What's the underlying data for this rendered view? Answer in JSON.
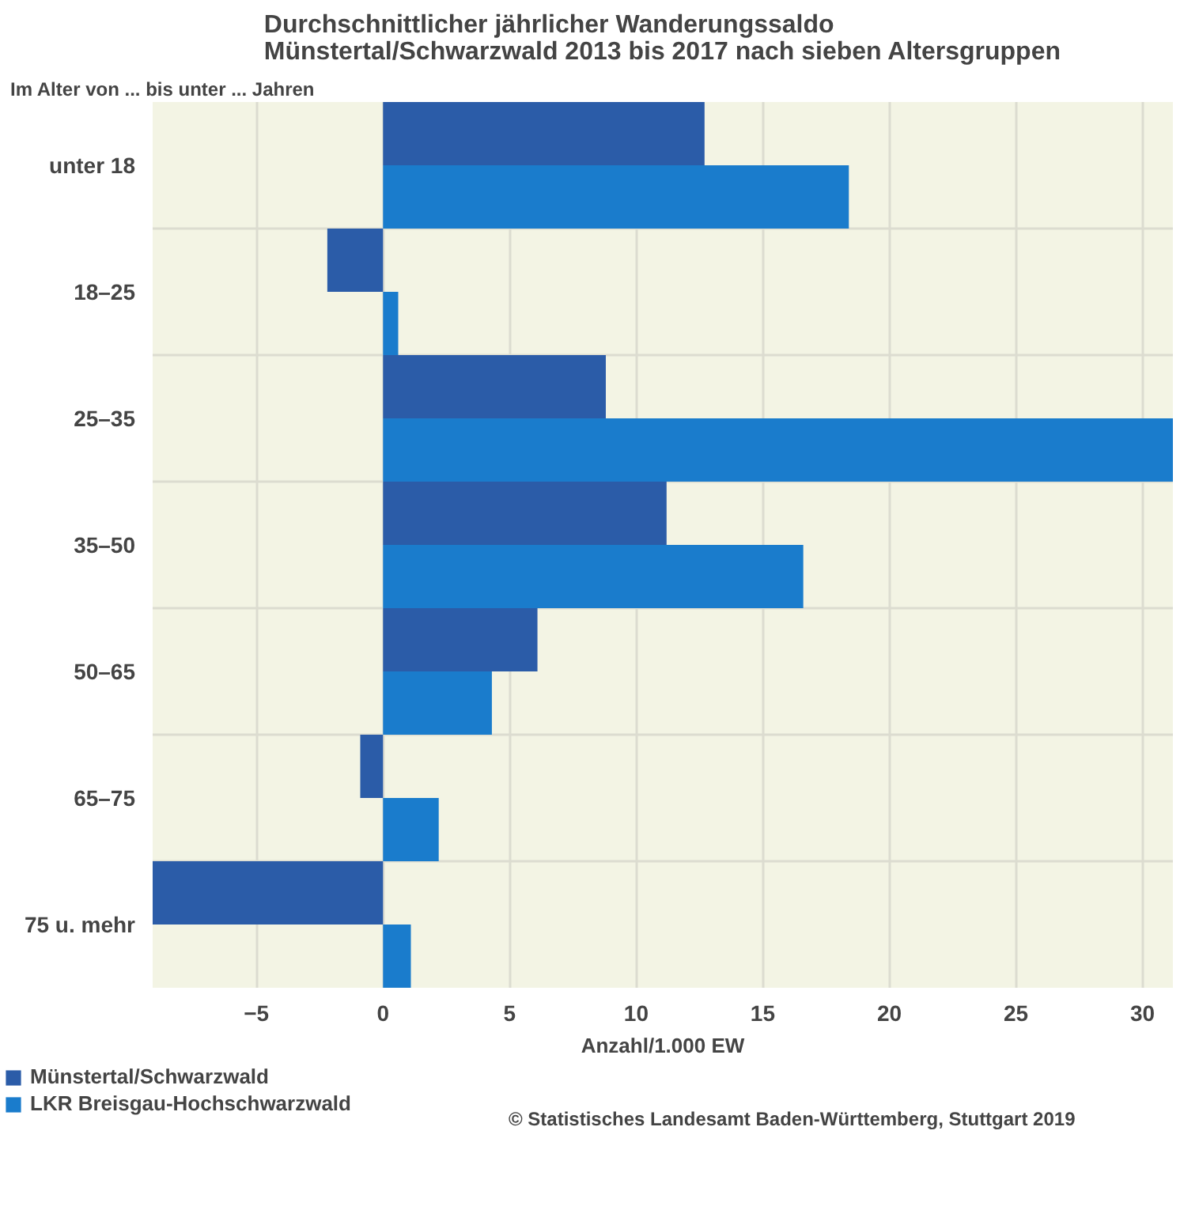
{
  "chart_data": {
    "type": "bar",
    "orientation": "horizontal",
    "title": "Durchschnittlicher jährlicher Wanderungssaldo\nMünstertal/Schwarzwald 2013 bis 2017 nach sieben Altersgruppen",
    "ylabel": "Im Alter von ... bis unter ... Jahren",
    "xlabel": "Anzahl/1.000 EW",
    "categories": [
      "unter 18",
      "18–25",
      "25–35",
      "35–50",
      "50–65",
      "65–75",
      "75 u. mehr"
    ],
    "series": [
      {
        "name": "Münstertal/Schwarzwald",
        "color": "#2b5ca8",
        "values": [
          12.7,
          -2.2,
          8.8,
          11.2,
          6.1,
          -0.9,
          -9.1
        ]
      },
      {
        "name": "LKR Breisgau-Hochschwarzwald",
        "color": "#1a7ccc",
        "values": [
          18.4,
          0.6,
          31.2,
          16.6,
          4.3,
          2.2,
          1.1
        ]
      }
    ],
    "xlim": [
      -9.1,
      31.2
    ],
    "xticks": [
      {
        "value": -5,
        "label": "−5"
      },
      0,
      5,
      10,
      15,
      20,
      25,
      30
    ],
    "grid": true,
    "legend": "bottom",
    "annotations": [
      "© Statistisches Landesamt Baden-Württemberg, Stuttgart 2019"
    ]
  }
}
